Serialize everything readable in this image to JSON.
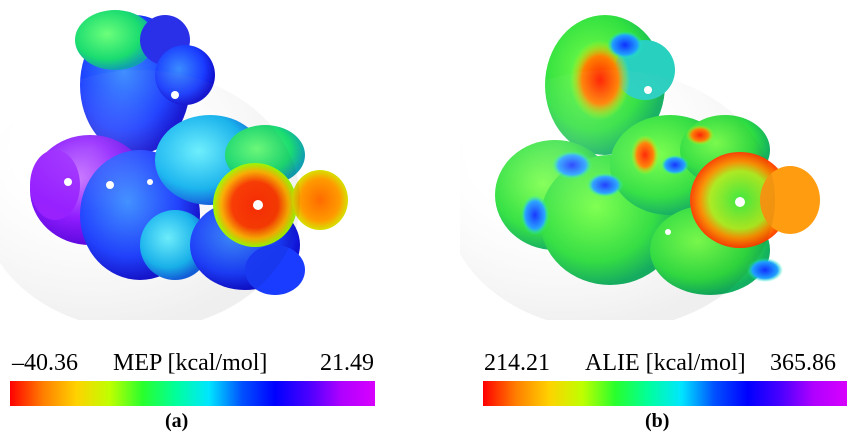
{
  "panels": [
    {
      "label": "(a)",
      "scale_name": "MEP [kcal/mol]",
      "min_label": "–40.36",
      "max_label": "21.49"
    },
    {
      "label": "(b)",
      "scale_name": "ALIE [kcal/mol]",
      "min_label": "214.21",
      "max_label": "365.86"
    }
  ],
  "colormap": [
    "#ff0000",
    "#ff7f00",
    "#ffd200",
    "#bfff00",
    "#28ff2d",
    "#00ff9c",
    "#00e6ff",
    "#0050ff",
    "#0000ff",
    "#4a00ff",
    "#b000ff",
    "#d800ff"
  ]
}
